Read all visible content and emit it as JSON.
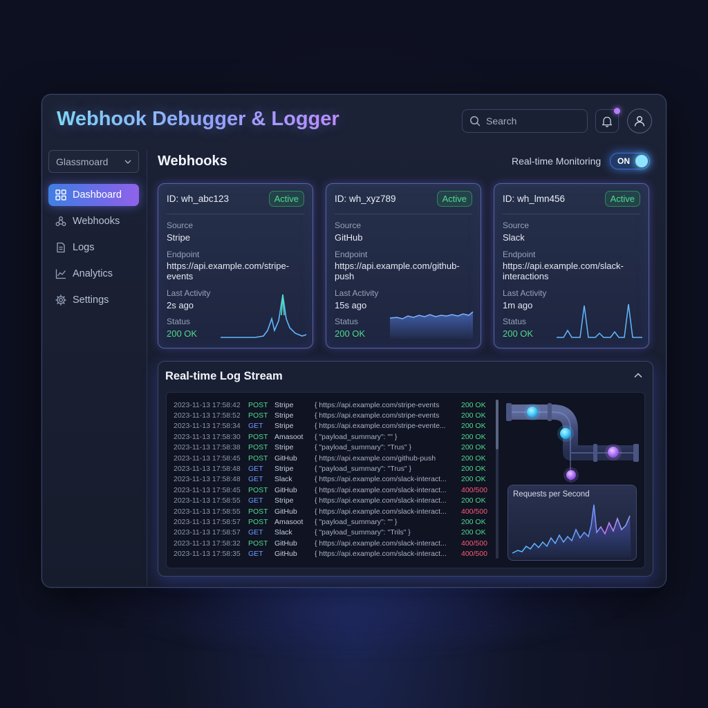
{
  "app": {
    "title": "Webhook Debugger & Logger"
  },
  "header": {
    "search_placeholder": "Search",
    "notification_icon": "bell-icon",
    "avatar_icon": "user-icon"
  },
  "sidebar": {
    "workspace": "Glassmoard",
    "items": [
      {
        "label": "Dashboard",
        "icon": "grid-icon",
        "active": true
      },
      {
        "label": "Webhooks",
        "icon": "webhook-icon",
        "active": false
      },
      {
        "label": "Logs",
        "icon": "document-icon",
        "active": false
      },
      {
        "label": "Analytics",
        "icon": "chart-line-icon",
        "active": false
      },
      {
        "label": "Settings",
        "icon": "gear-icon",
        "active": false
      }
    ]
  },
  "main": {
    "section_title": "Webhooks",
    "realtime_label": "Real-time Monitoring",
    "toggle_label": "ON",
    "toggle_on": true
  },
  "cards": [
    {
      "id": "ID: wh_abc123",
      "badge": "Active",
      "source_label": "Source",
      "source": "Stripe",
      "endpoint_label": "Endpoint",
      "endpoint": "https://api.example.com/stripe-events",
      "activity_label": "Last Activity",
      "activity": "2s ago",
      "status_label": "Status",
      "status": "200 OK"
    },
    {
      "id": "ID: wh_xyz789",
      "badge": "Active",
      "source_label": "Source",
      "source": "GitHub",
      "endpoint_label": "Endpoint",
      "endpoint": "https://api.example.com/github-push",
      "activity_label": "Last Activity",
      "activity": "15s ago",
      "status_label": "Status",
      "status": "200 OK"
    },
    {
      "id": "ID: wh_lmn456",
      "badge": "Active",
      "source_label": "Source",
      "source": "Slack",
      "endpoint_label": "Endpoint",
      "endpoint": "https://api.example.com/slack-interactions",
      "activity_label": "Last Activity",
      "activity": "1m ago",
      "status_label": "Status",
      "status": "200 OK"
    }
  ],
  "log_stream": {
    "title": "Real-time Log Stream",
    "rows": [
      {
        "time": "2023-11-13 17:58:42",
        "method": "POST",
        "source": "Stripe",
        "payload": "{ https://api.example.com/stripe-events",
        "status": "200 OK"
      },
      {
        "time": "2023-11-13 17:58:52",
        "method": "POST",
        "source": "Stripe",
        "payload": "{ https://api.example.com/stripe-events",
        "status": "200 OK"
      },
      {
        "time": "2023-11-13 17:58:34",
        "method": "GET",
        "source": "Stripe",
        "payload": "{ https://api.example.com/stripe-evente...",
        "status": "200 OK"
      },
      {
        "time": "2023-11-13 17:58:30",
        "method": "POST",
        "source": "Amasoot",
        "payload": "{ \"payload_summary\": \"\" }",
        "status": "200 OK"
      },
      {
        "time": "2023-11-13 17:58:38",
        "method": "POST",
        "source": "Stripe",
        "payload": "{ \"payload_summary\": \"Trus\" }",
        "status": "200 OK"
      },
      {
        "time": "2023-11-13 17:58:45",
        "method": "POST",
        "source": "GitHub",
        "payload": "{ https://api.example.com/github-push",
        "status": "200 OK"
      },
      {
        "time": "2023-11-13 17:58:48",
        "method": "GET",
        "source": "Stripe",
        "payload": "{ \"payload_summary\": \"Trus\" }",
        "status": "200 OK"
      },
      {
        "time": "2023-11-13 17:58:48",
        "method": "GET",
        "source": "Slack",
        "payload": "{ https://api.example.com/slack-interact...",
        "status": "200 OK"
      },
      {
        "time": "2023-11-13 17:58:45",
        "method": "POST",
        "source": "GitHub",
        "payload": "{ https://api.example.com/slack-interact...",
        "status": "400/500"
      },
      {
        "time": "2023-11-13 17:58:55",
        "method": "GET",
        "source": "Stripe",
        "payload": "{ https://api.example.com/slack-interact...",
        "status": "200 OK"
      },
      {
        "time": "2023-11-13 17:58:55",
        "method": "POST",
        "source": "GitHub",
        "payload": "{ https://api.example.com/slack-interact...",
        "status": "400/500"
      },
      {
        "time": "2023-11-13 17:58:57",
        "method": "POST",
        "source": "Amasoot",
        "payload": "{ \"payload_summary\": \"\" }",
        "status": "200 OK"
      },
      {
        "time": "2023-11-13 17:58:57",
        "method": "GET",
        "source": "Slack",
        "payload": "{ \"payload_summary\": \"Trils\" }",
        "status": "200 OK"
      },
      {
        "time": "2023-11-13 17:58:32",
        "method": "POST",
        "source": "GitHub",
        "payload": "{ https://api.example.com/slack-interact...",
        "status": "400/500"
      },
      {
        "time": "2023-11-13 17:58:35",
        "method": "GET",
        "source": "GitHub",
        "payload": "{ https://api.example.com/slack-interact...",
        "status": "400/500"
      }
    ],
    "rps_label": "Requests per Second"
  },
  "colors": {
    "accent_blue": "#3f7fe3",
    "accent_purple": "#8f63e9",
    "success": "#4fdc8d",
    "error": "#ff5b75",
    "get_method": "#6f9bff"
  }
}
